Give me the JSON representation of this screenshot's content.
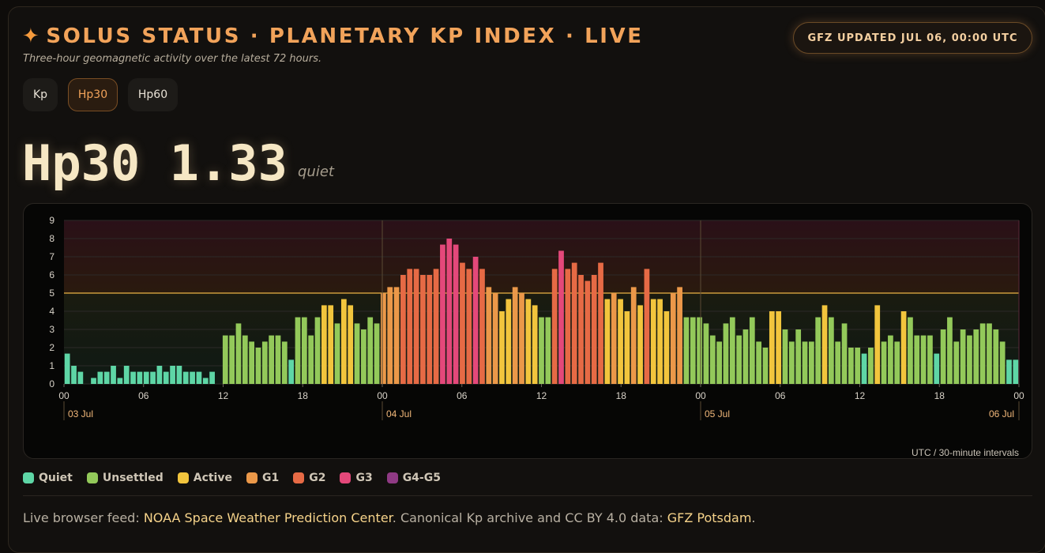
{
  "header": {
    "title": "SOLUS STATUS · PLANETARY KP INDEX · LIVE",
    "subtitle": "Three-hour geomagnetic activity over the latest 72 hours.",
    "updated_badge": "GFZ UPDATED JUL 06, 00:00 UTC"
  },
  "tabs": [
    {
      "label": "Kp",
      "active": false
    },
    {
      "label": "Hp30",
      "active": true
    },
    {
      "label": "Hp60",
      "active": false
    }
  ],
  "current": {
    "value_text": "Hp30 1.33",
    "condition": "quiet"
  },
  "colors": {
    "quiet": "#5ed6a6",
    "unsettled": "#93c95a",
    "active": "#f2c53d",
    "g1": "#eb9849",
    "g2": "#e66a45",
    "g3": "#e4487a",
    "g45": "#8f3a84",
    "accent": "#f2a35a"
  },
  "chart_data": {
    "type": "bar",
    "xlabel": "UTC / 30-minute intervals",
    "ylim": [
      0,
      9
    ],
    "y_ticks": [
      "0",
      "1",
      "2",
      "3",
      "4",
      "5",
      "6",
      "7",
      "8",
      "9"
    ],
    "storm_threshold": 5,
    "x_ticks": [
      "00",
      "06",
      "12",
      "18",
      "00",
      "06",
      "12",
      "18",
      "00",
      "06",
      "12",
      "18",
      "00"
    ],
    "date_labels": [
      "03 Jul",
      "04 Jul",
      "05 Jul",
      "06 Jul"
    ],
    "values": [
      1.67,
      1,
      0.67,
      0,
      0.33,
      0.67,
      0.67,
      1,
      0.33,
      1,
      0.67,
      0.67,
      0.67,
      0.67,
      1,
      0.67,
      1,
      1,
      0.67,
      0.67,
      0.67,
      0.33,
      0.67,
      0,
      2.67,
      2.67,
      3.33,
      2.67,
      2.33,
      2,
      2.33,
      2.67,
      2.67,
      2.33,
      1.33,
      3.67,
      3.67,
      2.67,
      3.67,
      4.33,
      4.33,
      3.33,
      4.67,
      4.33,
      3.33,
      3,
      3.67,
      3.33,
      5,
      5.33,
      5.33,
      6,
      6.33,
      6.33,
      6,
      6,
      6.33,
      7.67,
      8,
      7.67,
      6.67,
      6.33,
      7,
      6.33,
      5.33,
      5,
      4,
      4.67,
      5.33,
      5,
      4.67,
      4.33,
      3.67,
      3.67,
      6.33,
      7.33,
      6.33,
      6.67,
      6,
      5.67,
      6,
      6.67,
      4.67,
      5,
      4.67,
      4,
      5.33,
      4.33,
      6.33,
      4.67,
      4.67,
      4,
      5,
      5.33,
      3.67,
      3.67,
      3.67,
      3.33,
      2.67,
      2.33,
      3.33,
      3.67,
      2.67,
      3,
      3.67,
      2.33,
      2,
      4,
      4,
      3,
      2.33,
      3,
      2.33,
      2.33,
      3.67,
      4.33,
      3.67,
      2.33,
      3.33,
      2,
      2,
      1.67,
      2,
      4.33,
      2.33,
      2.67,
      2.33,
      4,
      3.67,
      2.67,
      2.67,
      2.67,
      1.67,
      3,
      3.67,
      2.33,
      3,
      2.67,
      3,
      3.33,
      3.33,
      3,
      2.33,
      1.33,
      1.33
    ]
  },
  "legend": [
    {
      "label": "Quiet",
      "color_key": "quiet"
    },
    {
      "label": "Unsettled",
      "color_key": "unsettled"
    },
    {
      "label": "Active",
      "color_key": "active"
    },
    {
      "label": "G1",
      "color_key": "g1"
    },
    {
      "label": "G2",
      "color_key": "g2"
    },
    {
      "label": "G3",
      "color_key": "g3"
    },
    {
      "label": "G4-G5",
      "color_key": "g45"
    }
  ],
  "footer": {
    "prefix": "Live browser feed: ",
    "link1": "NOAA Space Weather Prediction Center",
    "middle": ". Canonical Kp archive and CC BY 4.0 data: ",
    "link2": "GFZ Potsdam",
    "suffix": "."
  }
}
